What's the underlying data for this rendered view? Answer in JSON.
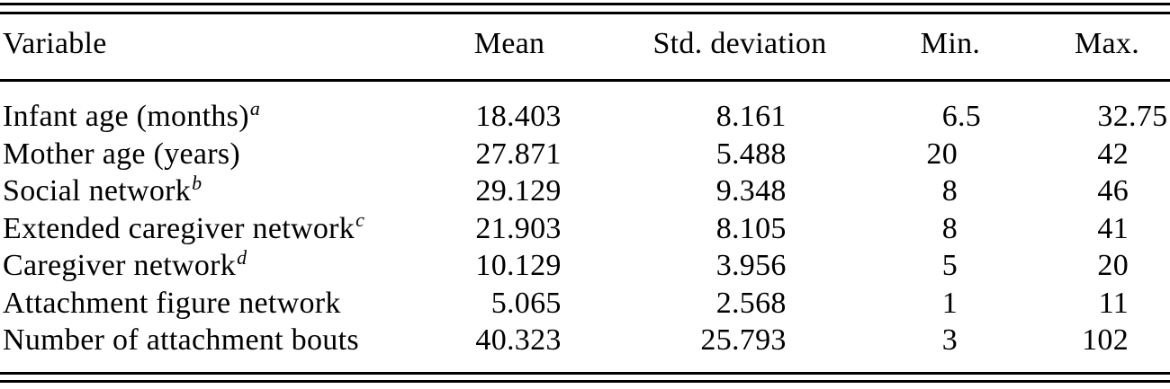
{
  "table": {
    "columns": [
      "Variable",
      "Mean",
      "Std. deviation",
      "Min.",
      "Max."
    ],
    "rows": [
      {
        "variable": "Infant age (months)",
        "sup": "a",
        "mean": "18.403",
        "std": "8.161",
        "min": "6.5",
        "max": "32.75"
      },
      {
        "variable": "Mother age (years)",
        "sup": "",
        "mean": "27.871",
        "std": "5.488",
        "min": "20",
        "max": "42"
      },
      {
        "variable": "Social network",
        "sup": "b",
        "mean": "29.129",
        "std": "9.348",
        "min": "8",
        "max": "46"
      },
      {
        "variable": "Extended caregiver network",
        "sup": "c",
        "mean": "21.903",
        "std": "8.105",
        "min": "8",
        "max": "41"
      },
      {
        "variable": "Caregiver network",
        "sup": "d",
        "mean": "10.129",
        "std": "3.956",
        "min": "5",
        "max": "20"
      },
      {
        "variable": "Attachment figure network",
        "sup": "",
        "mean": "5.065",
        "std": "2.568",
        "min": "1",
        "max": "11"
      },
      {
        "variable": "Number of attachment bouts",
        "sup": "",
        "mean": "40.323",
        "std": "25.793",
        "min": "3",
        "max": "102"
      }
    ]
  },
  "colors": {
    "text": "#000000",
    "background": "#ffffff",
    "rule": "#000000"
  }
}
